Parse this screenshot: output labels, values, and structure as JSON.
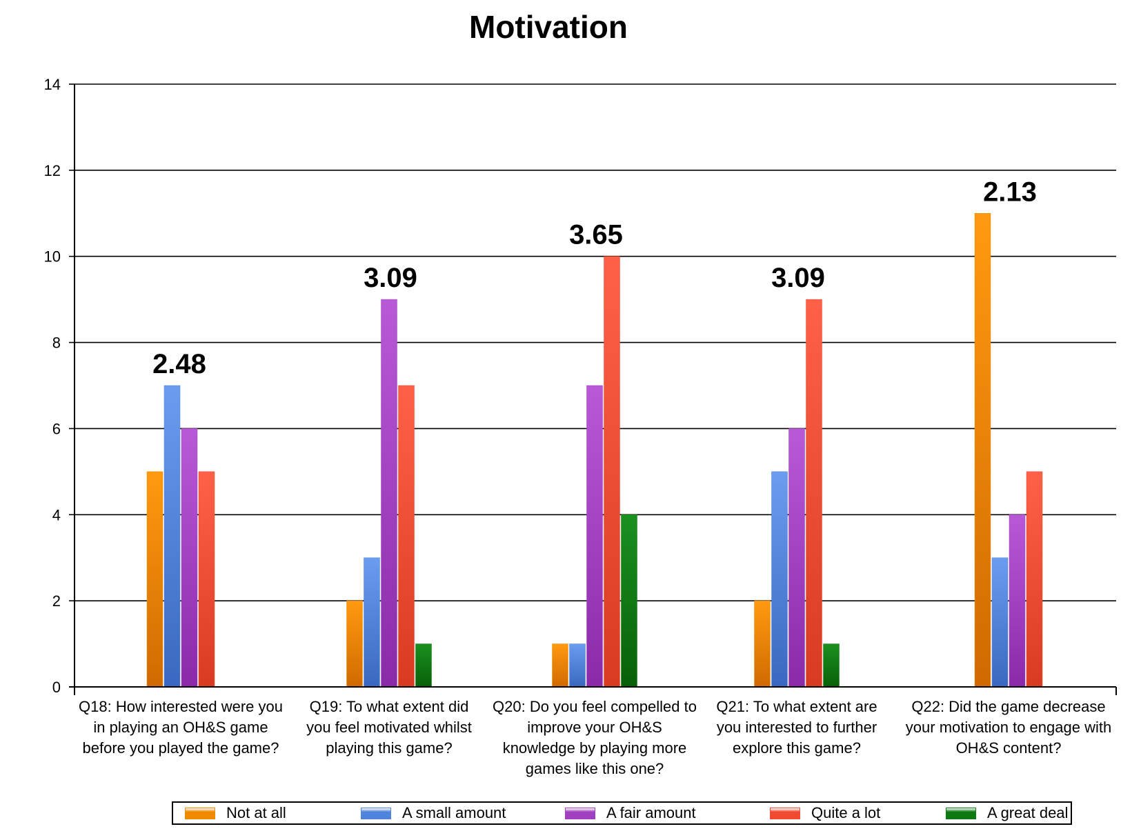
{
  "chart_data": {
    "type": "bar",
    "title": "Motivation",
    "xlabel": "",
    "ylabel": "",
    "ylim": [
      0,
      14
    ],
    "yticks": [
      0,
      2,
      4,
      6,
      8,
      10,
      12,
      14
    ],
    "grid": true,
    "legend_position": "bottom",
    "categories": [
      "Q18: How interested were you\nin playing an OH&S game\nbefore you played the game?",
      "Q19: To what extent did\nyou feel motivated whilst\nplaying this game?",
      "Q20: Do you feel compelled to\nimprove  your OH&S\nknowledge by playing more\ngames like this one?",
      "Q21: To what extent are\nyou interested to further\nexplore this game?",
      "Q22: Did the game decrease\nyour motivation to engage with\nOH&S content?"
    ],
    "series": [
      {
        "name": "Not at all",
        "color": "#f08a00",
        "values": [
          5,
          2,
          1,
          2,
          11
        ]
      },
      {
        "name": "A small amount",
        "color": "#4f84dc",
        "values": [
          7,
          3,
          1,
          5,
          3
        ]
      },
      {
        "name": "A fair amount",
        "color": "#a040c0",
        "values": [
          6,
          9,
          7,
          6,
          4
        ]
      },
      {
        "name": "Quite a lot",
        "color": "#f04a30",
        "values": [
          5,
          7,
          10,
          9,
          5
        ]
      },
      {
        "name": "A great deal",
        "color": "#0c7a10",
        "values": [
          0,
          1,
          4,
          1,
          0
        ]
      }
    ],
    "annotations": [
      "2.48",
      "3.09",
      "3.65",
      "3.09",
      "2.13"
    ]
  }
}
